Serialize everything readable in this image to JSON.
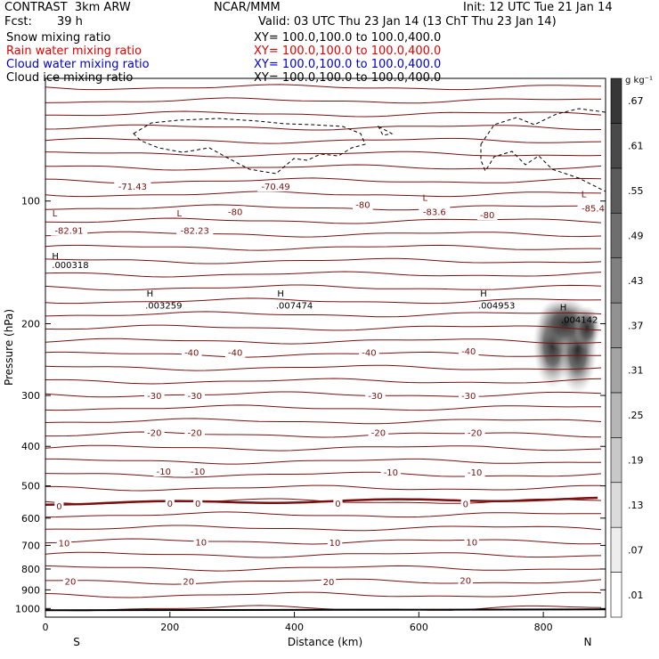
{
  "header": {
    "model": "CONTRAST  3km ARW",
    "org": "NCAR/MMM",
    "init": "Init: 12 UTC Tue 21 Jan 14",
    "fcst_label": "Fcst:",
    "fcst_value": "39 h",
    "valid": "Valid: 03 UTC Thu 23 Jan 14 (13 ChT Thu 23 Jan 14)"
  },
  "legend": [
    {
      "name": "Snow mixing ratio",
      "xy": "XY= 100.0,100.0 to 100.0,400.0",
      "color": "#000000"
    },
    {
      "name": "Rain water mixing ratio",
      "xy": "XY= 100.0,100.0 to 100.0,400.0",
      "color": "#e00000"
    },
    {
      "name": "Cloud water mixing ratio",
      "xy": "XY= 100.0,100.0 to 100.0,400.0",
      "color": "#0000cc"
    },
    {
      "name": "Cloud ice mixing ratio",
      "xy": "XY= 100.0,100.0 to 100.0,400.0",
      "color": "#000000"
    }
  ],
  "colors": {
    "isotherm": "#7a1010",
    "axis": "#000000"
  },
  "chart_data": {
    "type": "contour",
    "xlabel": "Distance (km)",
    "ylabel": "Pressure (hPa)",
    "xlim": [
      0,
      900
    ],
    "ylim": [
      1050,
      50
    ],
    "yscale": "log",
    "x_ticks": [
      "0",
      "200",
      "400",
      "600",
      "800"
    ],
    "x_tick_values": [
      0,
      200,
      400,
      600,
      800
    ],
    "y_ticks": [
      "100",
      "200",
      "300",
      "400",
      "500",
      "600",
      "700",
      "800",
      "900",
      "1000"
    ],
    "y_tick_values": [
      100,
      200,
      300,
      400,
      500,
      600,
      700,
      800,
      900,
      1000
    ],
    "direction_left": "S",
    "direction_right": "N",
    "colorbar": {
      "unit": "g kg⁻¹",
      "labels": [
        ".01",
        ".07",
        ".13",
        ".19",
        ".25",
        ".31",
        ".37",
        ".43",
        ".49",
        ".55",
        ".61",
        ".67"
      ]
    },
    "temperature_labels": [
      {
        "text": "-71.43",
        "x": 140,
        "p": 92
      },
      {
        "text": "-70.49",
        "x": 370,
        "p": 92
      },
      {
        "text": "-80",
        "x": 305,
        "p": 106
      },
      {
        "text": "-80",
        "x": 510,
        "p": 102
      },
      {
        "text": "-83.6",
        "x": 625,
        "p": 106
      },
      {
        "text": "-80",
        "x": 710,
        "p": 108
      },
      {
        "text": "-85.4",
        "x": 880,
        "p": 104
      },
      {
        "text": "-82.91",
        "x": 38,
        "p": 118
      },
      {
        "text": "-82.23",
        "x": 240,
        "p": 118
      },
      {
        "text": "-40",
        "x": 235,
        "p": 235
      },
      {
        "text": "-40",
        "x": 305,
        "p": 235
      },
      {
        "text": "-40",
        "x": 520,
        "p": 235
      },
      {
        "text": "-40",
        "x": 680,
        "p": 233
      },
      {
        "text": "-30",
        "x": 175,
        "p": 300
      },
      {
        "text": "-30",
        "x": 240,
        "p": 300
      },
      {
        "text": "-30",
        "x": 530,
        "p": 300
      },
      {
        "text": "-30",
        "x": 680,
        "p": 300
      },
      {
        "text": "-20",
        "x": 175,
        "p": 370
      },
      {
        "text": "-20",
        "x": 240,
        "p": 370
      },
      {
        "text": "-20",
        "x": 535,
        "p": 370
      },
      {
        "text": "-20",
        "x": 690,
        "p": 370
      },
      {
        "text": "-10",
        "x": 190,
        "p": 460
      },
      {
        "text": "-10",
        "x": 245,
        "p": 460
      },
      {
        "text": "-10",
        "x": 555,
        "p": 462
      },
      {
        "text": "-10",
        "x": 690,
        "p": 462
      },
      {
        "text": "0",
        "x": 22,
        "p": 560
      },
      {
        "text": "0",
        "x": 200,
        "p": 552
      },
      {
        "text": "0",
        "x": 245,
        "p": 552
      },
      {
        "text": "0",
        "x": 470,
        "p": 552
      },
      {
        "text": "0",
        "x": 675,
        "p": 553
      },
      {
        "text": "10",
        "x": 30,
        "p": 690
      },
      {
        "text": "10",
        "x": 250,
        "p": 686
      },
      {
        "text": "10",
        "x": 465,
        "p": 688
      },
      {
        "text": "10",
        "x": 685,
        "p": 686
      },
      {
        "text": "20",
        "x": 40,
        "p": 856
      },
      {
        "text": "20",
        "x": 230,
        "p": 856
      },
      {
        "text": "20",
        "x": 455,
        "p": 858
      },
      {
        "text": "20",
        "x": 675,
        "p": 852
      }
    ],
    "hl_markers": [
      {
        "text": "L",
        "x": 15,
        "p": 107
      },
      {
        "text": "L",
        "x": 215,
        "p": 107
      },
      {
        "text": "L",
        "x": 610,
        "p": 98
      },
      {
        "text": "L",
        "x": 865,
        "p": 96
      },
      {
        "text": "H",
        "x": 16,
        "p": 136
      },
      {
        "text": "H",
        "x": 168,
        "p": 168
      },
      {
        "text": "H",
        "x": 378,
        "p": 168
      },
      {
        "text": "H",
        "x": 704,
        "p": 168
      },
      {
        "text": "H",
        "x": 832,
        "p": 182
      }
    ],
    "cloud_ice_labels": [
      {
        "text": ".000318",
        "x": 40,
        "p": 143
      },
      {
        "text": ".003259",
        "x": 190,
        "p": 180
      },
      {
        "text": ".007474",
        "x": 400,
        "p": 180
      },
      {
        "text": ".004953",
        "x": 725,
        "p": 180
      },
      {
        "text": ".004142",
        "x": 858,
        "p": 195
      }
    ]
  }
}
